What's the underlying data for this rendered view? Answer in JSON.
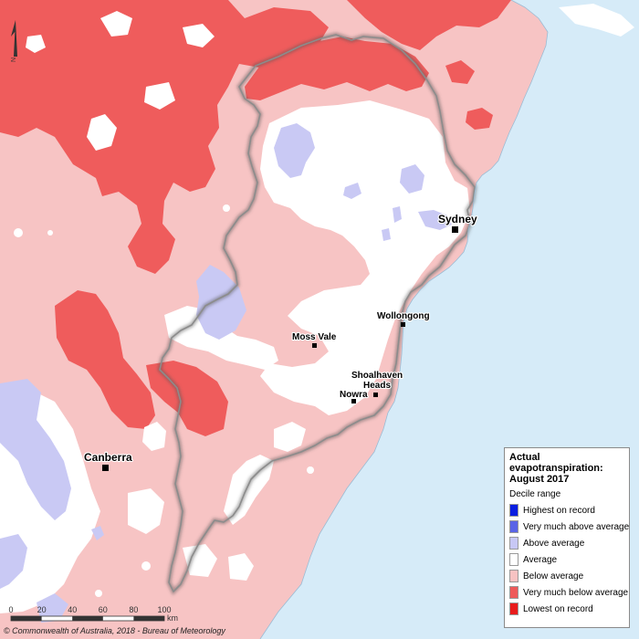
{
  "legend": {
    "title_line1": "Actual",
    "title_line2": "evapotranspiration:",
    "title_line3": "August 2017",
    "subtitle": "Decile range",
    "items": [
      {
        "label": "Highest on record",
        "color": "#0a1ee0"
      },
      {
        "label": "Very much above average",
        "color": "#5a64e6"
      },
      {
        "label": "Above average",
        "color": "#c8c8f5"
      },
      {
        "label": "Average",
        "color": "#ffffff"
      },
      {
        "label": "Below average",
        "color": "#f7c2c2"
      },
      {
        "label": "Very much below average",
        "color": "#ee5a5a"
      },
      {
        "label": "Lowest on record",
        "color": "#e81c1c"
      }
    ]
  },
  "places": {
    "sydney": "Sydney",
    "wollongong": "Wollongong",
    "moss_vale": "Moss Vale",
    "shoalhaven_heads": "Shoalhaven Heads",
    "nowra": "Nowra",
    "canberra": "Canberra"
  },
  "scale": {
    "ticks": [
      "0",
      "20",
      "40",
      "60",
      "80",
      "100"
    ],
    "unit": "km"
  },
  "north_label": "N",
  "copyright": "© Commonwealth of Australia, 2018 - Bureau of Meteorology",
  "colors": {
    "ocean": "#d6ebf8",
    "land_base": "#f7c4c4",
    "average": "#ffffff",
    "very_much_below": "#ef5c5c",
    "above_average": "#c9c9f4",
    "boundary": "#7a7a7a"
  }
}
